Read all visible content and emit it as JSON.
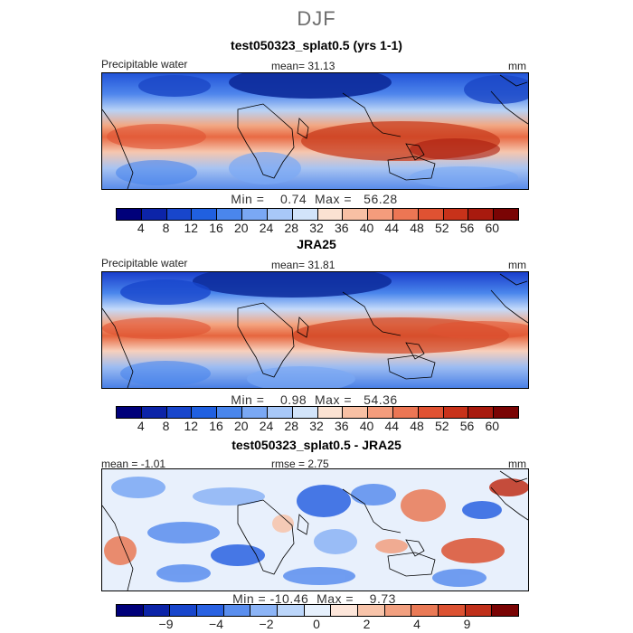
{
  "season": "DJF",
  "panels": [
    {
      "title": "test050323_splat0.5 (yrs 1-1)",
      "left_label": "Precipitable water",
      "center_label": "mean=  31.13",
      "units": "mm",
      "min_max": "Min =    0.74  Max =   56.28",
      "colorbar": {
        "colors": [
          "#00007a",
          "#0c24a8",
          "#1846cc",
          "#2060e0",
          "#4a86ec",
          "#7aa8f4",
          "#a8c8f8",
          "#d2e4fa",
          "#fbe2d2",
          "#f8c0a4",
          "#f49c7c",
          "#ec7654",
          "#e05232",
          "#c8321a",
          "#a81a0e",
          "#7a0404"
        ],
        "ticks": [
          "4",
          "8",
          "12",
          "16",
          "20",
          "24",
          "28",
          "32",
          "36",
          "40",
          "44",
          "48",
          "52",
          "56",
          "60"
        ]
      }
    },
    {
      "title": "JRA25",
      "left_label": "Precipitable water",
      "center_label": "mean=  31.81",
      "units": "mm",
      "min_max": "Min =    0.98  Max =   54.36",
      "colorbar": {
        "colors": [
          "#00007a",
          "#0c24a8",
          "#1846cc",
          "#2060e0",
          "#4a86ec",
          "#7aa8f4",
          "#a8c8f8",
          "#d2e4fa",
          "#fbe2d2",
          "#f8c0a4",
          "#f49c7c",
          "#ec7654",
          "#e05232",
          "#c8321a",
          "#a81a0e",
          "#7a0404"
        ],
        "ticks": [
          "4",
          "8",
          "12",
          "16",
          "20",
          "24",
          "28",
          "32",
          "36",
          "40",
          "44",
          "48",
          "52",
          "56",
          "60"
        ]
      }
    },
    {
      "title": "test050323_splat0.5 - JRA25",
      "left_label": "mean =  -1.01",
      "center_label": "rmse =    2.75",
      "units": "mm",
      "min_max": "Min = -10.46  Max =    9.73",
      "colorbar": {
        "colors": [
          "#00007a",
          "#0c24a8",
          "#1846cc",
          "#2a62e2",
          "#5a8eee",
          "#8cb4f6",
          "#bcd6fa",
          "#e6f0fc",
          "#fde6da",
          "#f8c4aa",
          "#f2a080",
          "#ea7a56",
          "#dc5232",
          "#c0301a",
          "#7a0404"
        ],
        "ticks": [
          "-9",
          "-4",
          "-2",
          "0",
          "2",
          "4",
          "9"
        ]
      }
    }
  ]
}
